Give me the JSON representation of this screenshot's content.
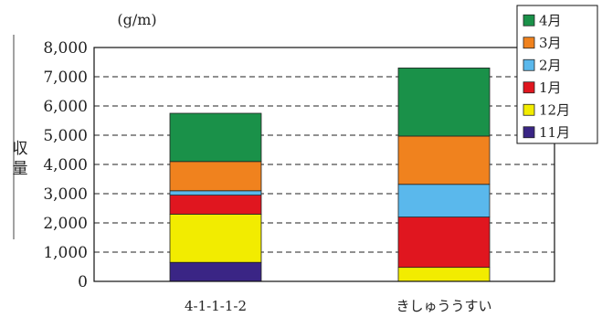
{
  "chart_data": {
    "type": "bar",
    "stacked": true,
    "unit": "(g/m)",
    "ylabel": "収量",
    "ylim": [
      0,
      8000
    ],
    "yticks": [
      "0",
      "1,000",
      "2,000",
      "3,000",
      "4,000",
      "5,000",
      "6,000",
      "7,000",
      "8,000"
    ],
    "grid": "horizontal-dashed",
    "legend_position": "top-right",
    "categories": [
      "4-1-1-1-2",
      "きしゅううすい"
    ],
    "series": [
      {
        "name": "11月",
        "color": "#3a2585",
        "values": [
          650,
          0
        ]
      },
      {
        "name": "12月",
        "color": "#f2ec00",
        "values": [
          1650,
          480
        ]
      },
      {
        "name": "1月",
        "color": "#e0161f",
        "values": [
          650,
          1720
        ]
      },
      {
        "name": "2月",
        "color": "#5ab8ec",
        "values": [
          150,
          1120
        ]
      },
      {
        "name": "3月",
        "color": "#f0821e",
        "values": [
          1000,
          1650
        ]
      },
      {
        "name": "4月",
        "color": "#1a9149",
        "values": [
          1650,
          2330
        ]
      }
    ]
  }
}
